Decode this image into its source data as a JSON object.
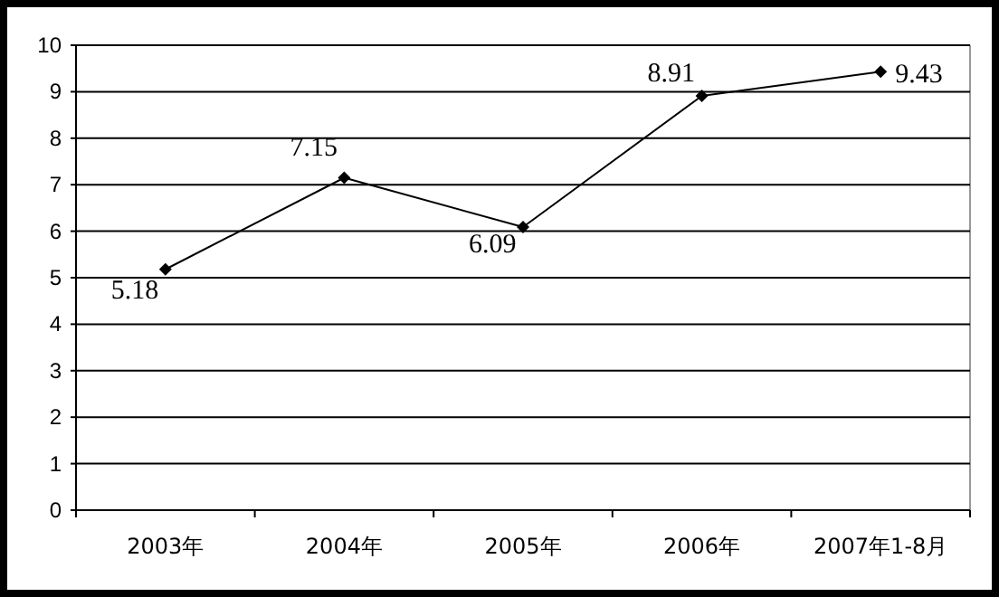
{
  "chart_data": {
    "type": "line",
    "categories": [
      "2003年",
      "2004年",
      "2005年",
      "2006年",
      "2007年1-8月"
    ],
    "series": [
      {
        "color": "#000000",
        "values": [
          5.18,
          7.15,
          6.09,
          8.91,
          9.43
        ]
      }
    ],
    "ylim": [
      0,
      10
    ],
    "yticks": [
      0,
      1,
      2,
      3,
      4,
      5,
      6,
      7,
      8,
      9,
      10
    ],
    "grid": "y",
    "marker": "diamond",
    "line_style": "solid",
    "data_labels": true
  }
}
